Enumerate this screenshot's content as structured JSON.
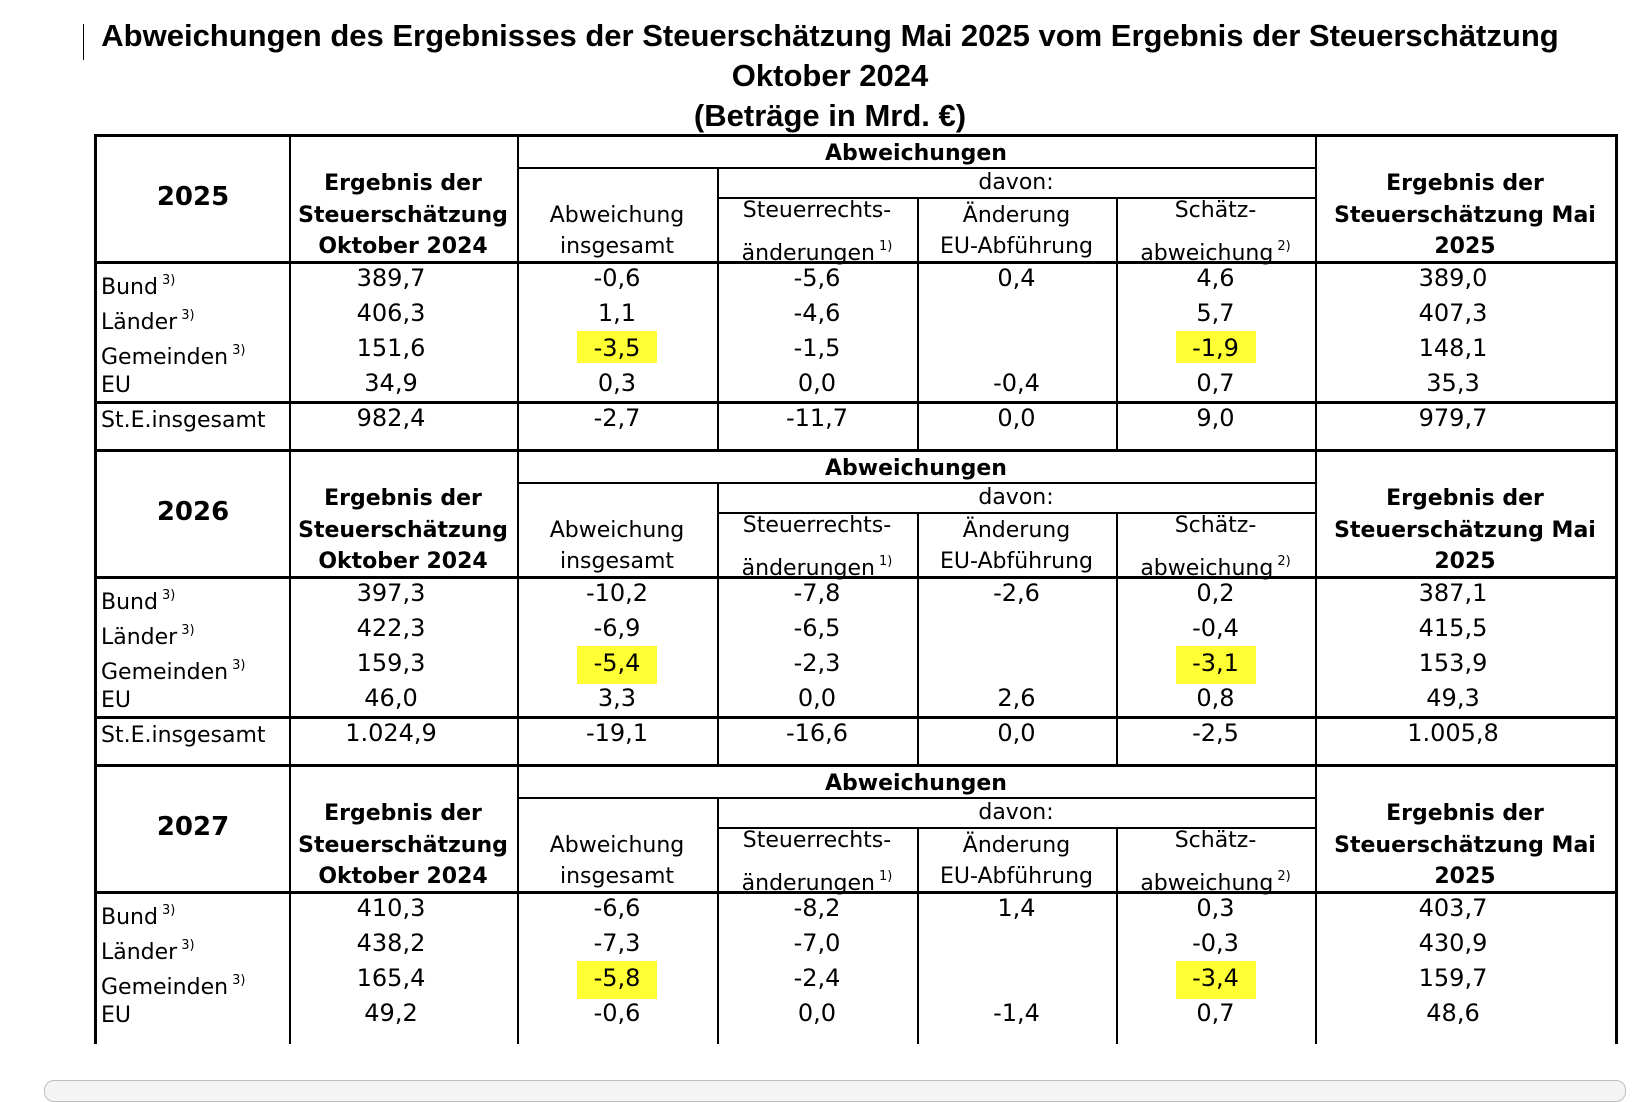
{
  "title": {
    "line1": "Abweichungen des Ergebnisses der Steuerschätzung Mai 2025 vom Ergebnis der Steuerschätzung",
    "line2": "Oktober 2024",
    "line3": "(Beträge in Mrd. €)"
  },
  "headers": {
    "oct_line1": "Ergebnis der",
    "oct_line2": "Steuerschätzung",
    "oct_line3": "Oktober 2024",
    "abweichungen": "Abweichungen",
    "davon": "davon:",
    "ins_line1": "Abweichung",
    "ins_line2": "insgesamt",
    "str_line1": "Steuerrechts-",
    "str_line2": "änderungen",
    "str_sup": "1)",
    "eu_line1": "Änderung",
    "eu_line2": "EU-Abführung",
    "sch_line1": "Schätz-",
    "sch_line2": "abweichung",
    "sch_sup": "2)",
    "may_line1": "Ergebnis der",
    "may_line2": "Steuerschätzung Mai",
    "may_line3": "2025"
  },
  "footnote_mark": "3)",
  "highlight_color": "#ffff33",
  "blocks": [
    {
      "year": "2025",
      "rows": [
        {
          "label": "Bund",
          "sup": "3)",
          "oct": "389,7",
          "ins": "-0,6",
          "str": "-5,6",
          "eu": "0,4",
          "sch": "4,6",
          "may": "389,0"
        },
        {
          "label": "Länder",
          "sup": "3)",
          "oct": "406,3",
          "ins": "1,1",
          "str": "-4,6",
          "eu": "",
          "sch": "5,7",
          "may": "407,3"
        },
        {
          "label": "Gemeinden",
          "sup": "3)",
          "oct": "151,6",
          "ins": "-3,5",
          "str": "-1,5",
          "eu": "",
          "sch": "-1,9",
          "may": "148,1"
        },
        {
          "label": "EU",
          "sup": "",
          "oct": "34,9",
          "ins": "0,3",
          "str": "0,0",
          "eu": "-0,4",
          "sch": "0,7",
          "may": "35,3"
        },
        {
          "label": "St.E.insgesamt",
          "sup": "",
          "oct": "982,4",
          "ins": "-2,7",
          "str": "-11,7",
          "eu": "0,0",
          "sch": "9,0",
          "may": "979,7"
        }
      ]
    },
    {
      "year": "2026",
      "rows": [
        {
          "label": "Bund",
          "sup": "3)",
          "oct": "397,3",
          "ins": "-10,2",
          "str": "-7,8",
          "eu": "-2,6",
          "sch": "0,2",
          "may": "387,1"
        },
        {
          "label": "Länder",
          "sup": "3)",
          "oct": "422,3",
          "ins": "-6,9",
          "str": "-6,5",
          "eu": "",
          "sch": "-0,4",
          "may": "415,5"
        },
        {
          "label": "Gemeinden",
          "sup": "3)",
          "oct": "159,3",
          "ins": "-5,4",
          "str": "-2,3",
          "eu": "",
          "sch": "-3,1",
          "may": "153,9"
        },
        {
          "label": "EU",
          "sup": "",
          "oct": "46,0",
          "ins": "3,3",
          "str": "0,0",
          "eu": "2,6",
          "sch": "0,8",
          "may": "49,3"
        },
        {
          "label": "St.E.insgesamt",
          "sup": "",
          "oct": "1.024,9",
          "ins": "-19,1",
          "str": "-16,6",
          "eu": "0,0",
          "sch": "-2,5",
          "may": "1.005,8"
        }
      ]
    },
    {
      "year": "2027",
      "rows": [
        {
          "label": "Bund",
          "sup": "3)",
          "oct": "410,3",
          "ins": "-6,6",
          "str": "-8,2",
          "eu": "1,4",
          "sch": "0,3",
          "may": "403,7"
        },
        {
          "label": "Länder",
          "sup": "3)",
          "oct": "438,2",
          "ins": "-7,3",
          "str": "-7,0",
          "eu": "",
          "sch": "-0,3",
          "may": "430,9"
        },
        {
          "label": "Gemeinden",
          "sup": "3)",
          "oct": "165,4",
          "ins": "-5,8",
          "str": "-2,4",
          "eu": "",
          "sch": "-3,4",
          "may": "159,7"
        },
        {
          "label": "EU",
          "sup": "",
          "oct": "49,2",
          "ins": "-0,6",
          "str": "0,0",
          "eu": "-1,4",
          "sch": "0,7",
          "may": "48,6"
        }
      ]
    }
  ]
}
